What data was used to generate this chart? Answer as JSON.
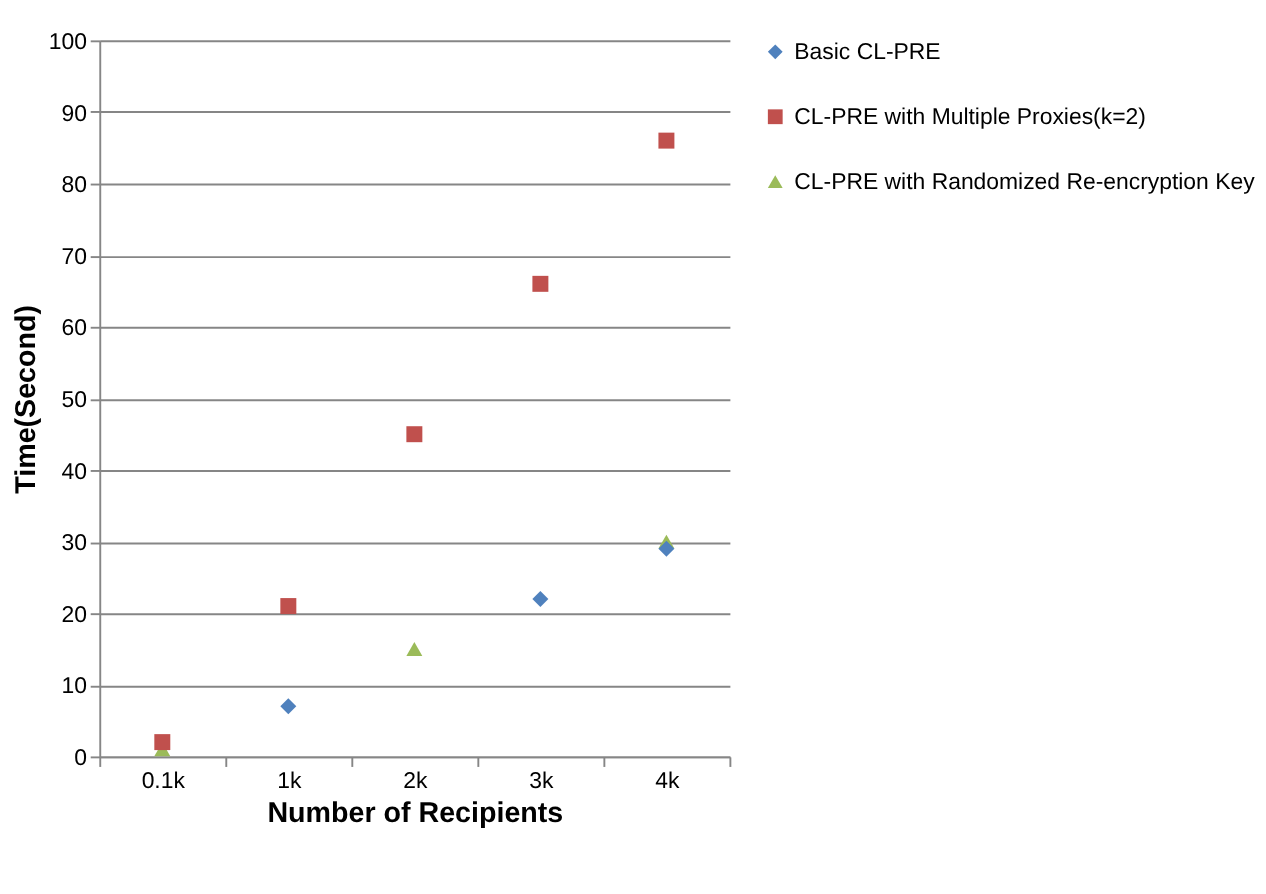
{
  "chart_data": {
    "type": "scatter",
    "xlabel": "Number of Recipients",
    "ylabel": "Time(Second)",
    "categories": [
      "0.1k",
      "1k",
      "2k",
      "3k",
      "4k"
    ],
    "ylim": [
      0,
      100
    ],
    "yticks": [
      0,
      10,
      20,
      30,
      40,
      50,
      60,
      70,
      80,
      90,
      100
    ],
    "grid": "y",
    "legend": "right",
    "series": [
      {
        "name": "Basic CL-PRE",
        "color": "#4f81bd",
        "marker": "diamond",
        "values": [
          null,
          7,
          null,
          22,
          29
        ]
      },
      {
        "name": "CL-PRE with Multiple Proxies(k=2)",
        "color": "#c0504d",
        "marker": "square",
        "values": [
          2,
          21,
          45,
          66,
          86
        ]
      },
      {
        "name": "CL-PRE with Randomized Re-encryption Key",
        "color": "#9bbb59",
        "marker": "triangle",
        "values": [
          1,
          null,
          15,
          null,
          30
        ]
      }
    ]
  }
}
